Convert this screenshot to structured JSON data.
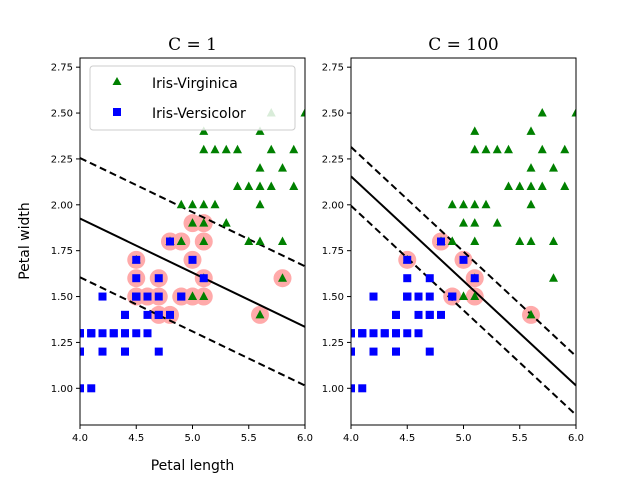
{
  "chart_data": [
    {
      "type": "scatter",
      "title": "C = 1",
      "xlabel": "Petal length",
      "ylabel": "Petal width",
      "xlim": [
        4.0,
        6.0
      ],
      "ylim": [
        0.8,
        2.8
      ],
      "xticks": [
        "4.0",
        "4.5",
        "5.0",
        "5.5",
        "6.0"
      ],
      "yticks": [
        "1.00",
        "1.25",
        "1.50",
        "1.75",
        "2.00",
        "2.25",
        "2.50",
        "2.75"
      ],
      "legend": {
        "position": "top-left",
        "entries": [
          "Iris-Virginica",
          "Iris-Versicolor"
        ]
      },
      "series": [
        {
          "name": "Iris-Virginica",
          "marker": "triangle",
          "color": "#008000",
          "points": [
            [
              6.0,
              2.5
            ],
            [
              5.1,
              1.9
            ],
            [
              5.9,
              2.1
            ],
            [
              5.6,
              1.8
            ],
            [
              5.8,
              2.2
            ],
            [
              5.8,
              1.8
            ],
            [
              5.1,
              2.0
            ],
            [
              5.3,
              1.9
            ],
            [
              5.5,
              2.1
            ],
            [
              5.0,
              2.0
            ],
            [
              5.1,
              2.4
            ],
            [
              5.3,
              2.3
            ],
            [
              5.5,
              1.8
            ],
            [
              5.0,
              1.5
            ],
            [
              5.1,
              2.3
            ],
            [
              4.9,
              1.8
            ],
            [
              5.6,
              2.1
            ],
            [
              5.1,
              1.8
            ],
            [
              5.7,
              2.3
            ],
            [
              5.8,
              1.6
            ],
            [
              5.6,
              1.4
            ],
            [
              5.4,
              2.1
            ],
            [
              5.6,
              2.4
            ],
            [
              5.1,
              1.5
            ],
            [
              5.6,
              2.2
            ],
            [
              5.9,
              2.3
            ],
            [
              5.7,
              2.5
            ],
            [
              5.2,
              2.3
            ],
            [
              5.0,
              1.9
            ],
            [
              5.2,
              2.0
            ],
            [
              5.4,
              2.3
            ],
            [
              4.5,
              1.7
            ],
            [
              4.8,
              1.8
            ],
            [
              4.9,
              2.0
            ],
            [
              5.0,
              1.5
            ],
            [
              4.8,
              1.8
            ],
            [
              5.7,
              2.1
            ],
            [
              5.6,
              2.0
            ],
            [
              4.9,
              1.8
            ],
            [
              5.1,
              1.6
            ]
          ]
        },
        {
          "name": "Iris-Versicolor",
          "marker": "square",
          "color": "#0000ff",
          "points": [
            [
              4.7,
              1.4
            ],
            [
              4.5,
              1.5
            ],
            [
              4.9,
              1.5
            ],
            [
              4.0,
              1.3
            ],
            [
              4.6,
              1.5
            ],
            [
              4.5,
              1.3
            ],
            [
              4.7,
              1.6
            ],
            [
              4.4,
              1.3
            ],
            [
              4.1,
              1.0
            ],
            [
              4.0,
              1.0
            ],
            [
              4.7,
              1.4
            ],
            [
              4.4,
              1.4
            ],
            [
              4.2,
              1.5
            ],
            [
              4.4,
              1.2
            ],
            [
              4.5,
              1.5
            ],
            [
              4.1,
              1.3
            ],
            [
              4.5,
              1.5
            ],
            [
              4.0,
              1.2
            ],
            [
              4.8,
              1.8
            ],
            [
              4.0,
              1.3
            ],
            [
              4.9,
              1.5
            ],
            [
              4.7,
              1.2
            ],
            [
              4.3,
              1.3
            ],
            [
              4.4,
              1.4
            ],
            [
              4.8,
              1.4
            ],
            [
              5.0,
              1.7
            ],
            [
              4.5,
              1.5
            ],
            [
              4.1,
              1.3
            ],
            [
              4.5,
              1.6
            ],
            [
              4.7,
              1.5
            ],
            [
              4.4,
              1.3
            ],
            [
              4.1,
              1.3
            ],
            [
              4.0,
              1.3
            ],
            [
              4.4,
              1.2
            ],
            [
              4.6,
              1.4
            ],
            [
              4.0,
              1.2
            ],
            [
              4.2,
              1.3
            ],
            [
              4.2,
              1.2
            ],
            [
              4.3,
              1.3
            ],
            [
              4.6,
              1.3
            ],
            [
              5.1,
              1.6
            ],
            [
              4.5,
              1.7
            ]
          ]
        }
      ],
      "support_vectors": [
        [
          4.5,
          1.7
        ],
        [
          4.5,
          1.6
        ],
        [
          4.5,
          1.5
        ],
        [
          4.6,
          1.5
        ],
        [
          4.7,
          1.6
        ],
        [
          4.7,
          1.5
        ],
        [
          4.7,
          1.4
        ],
        [
          4.8,
          1.8
        ],
        [
          4.8,
          1.4
        ],
        [
          4.9,
          1.8
        ],
        [
          4.9,
          1.5
        ],
        [
          5.0,
          1.9
        ],
        [
          5.0,
          1.7
        ],
        [
          5.0,
          1.5
        ],
        [
          5.1,
          1.9
        ],
        [
          5.1,
          1.8
        ],
        [
          5.1,
          1.6
        ],
        [
          5.1,
          1.5
        ],
        [
          5.6,
          1.4
        ],
        [
          5.8,
          1.6
        ]
      ],
      "support_vector_color": "#ffaaaa",
      "decision_boundary": {
        "solid": [
          [
            4.0,
            1.925
          ],
          [
            6.0,
            1.335
          ]
        ],
        "margin_upper": [
          [
            4.0,
            2.255
          ],
          [
            6.0,
            1.665
          ]
        ],
        "margin_lower": [
          [
            4.0,
            1.605
          ],
          [
            6.0,
            1.015
          ]
        ]
      }
    },
    {
      "type": "scatter",
      "title": "C = 100",
      "xlabel": "",
      "ylabel": "",
      "xlim": [
        4.0,
        6.0
      ],
      "ylim": [
        0.8,
        2.8
      ],
      "xticks": [
        "4.0",
        "4.5",
        "5.0",
        "5.5",
        "6.0"
      ],
      "yticks": [
        "1.00",
        "1.25",
        "1.50",
        "1.75",
        "2.00",
        "2.25",
        "2.50",
        "2.75"
      ],
      "series": [
        {
          "name": "Iris-Virginica",
          "marker": "triangle",
          "color": "#008000",
          "points": [
            [
              6.0,
              2.5
            ],
            [
              5.1,
              1.9
            ],
            [
              5.9,
              2.1
            ],
            [
              5.6,
              1.8
            ],
            [
              5.8,
              2.2
            ],
            [
              5.8,
              1.8
            ],
            [
              5.1,
              2.0
            ],
            [
              5.3,
              1.9
            ],
            [
              5.5,
              2.1
            ],
            [
              5.0,
              2.0
            ],
            [
              5.1,
              2.4
            ],
            [
              5.3,
              2.3
            ],
            [
              5.5,
              1.8
            ],
            [
              5.0,
              1.5
            ],
            [
              5.1,
              2.3
            ],
            [
              4.9,
              1.8
            ],
            [
              5.6,
              2.1
            ],
            [
              5.1,
              1.8
            ],
            [
              5.7,
              2.3
            ],
            [
              5.8,
              1.6
            ],
            [
              5.6,
              1.4
            ],
            [
              5.4,
              2.1
            ],
            [
              5.6,
              2.4
            ],
            [
              5.1,
              1.5
            ],
            [
              5.6,
              2.2
            ],
            [
              5.9,
              2.3
            ],
            [
              5.7,
              2.5
            ],
            [
              5.2,
              2.3
            ],
            [
              5.0,
              1.9
            ],
            [
              5.2,
              2.0
            ],
            [
              5.4,
              2.3
            ],
            [
              4.5,
              1.7
            ],
            [
              4.8,
              1.8
            ],
            [
              4.9,
              2.0
            ],
            [
              5.0,
              1.5
            ],
            [
              4.8,
              1.8
            ],
            [
              5.7,
              2.1
            ],
            [
              5.6,
              2.0
            ],
            [
              4.9,
              1.8
            ],
            [
              5.1,
              1.6
            ]
          ]
        },
        {
          "name": "Iris-Versicolor",
          "marker": "square",
          "color": "#0000ff",
          "points": [
            [
              4.7,
              1.4
            ],
            [
              4.5,
              1.5
            ],
            [
              4.9,
              1.5
            ],
            [
              4.0,
              1.3
            ],
            [
              4.6,
              1.5
            ],
            [
              4.5,
              1.3
            ],
            [
              4.7,
              1.6
            ],
            [
              4.4,
              1.3
            ],
            [
              4.1,
              1.0
            ],
            [
              4.0,
              1.0
            ],
            [
              4.7,
              1.4
            ],
            [
              4.4,
              1.4
            ],
            [
              4.2,
              1.5
            ],
            [
              4.4,
              1.2
            ],
            [
              4.5,
              1.5
            ],
            [
              4.1,
              1.3
            ],
            [
              4.5,
              1.5
            ],
            [
              4.0,
              1.2
            ],
            [
              4.8,
              1.8
            ],
            [
              4.0,
              1.3
            ],
            [
              4.9,
              1.5
            ],
            [
              4.7,
              1.2
            ],
            [
              4.3,
              1.3
            ],
            [
              4.4,
              1.4
            ],
            [
              4.8,
              1.4
            ],
            [
              5.0,
              1.7
            ],
            [
              4.5,
              1.5
            ],
            [
              4.1,
              1.3
            ],
            [
              4.5,
              1.6
            ],
            [
              4.7,
              1.5
            ],
            [
              4.4,
              1.3
            ],
            [
              4.1,
              1.3
            ],
            [
              4.0,
              1.3
            ],
            [
              4.4,
              1.2
            ],
            [
              4.6,
              1.4
            ],
            [
              4.0,
              1.2
            ],
            [
              4.2,
              1.3
            ],
            [
              4.2,
              1.2
            ],
            [
              4.3,
              1.3
            ],
            [
              4.6,
              1.3
            ],
            [
              5.1,
              1.6
            ],
            [
              4.5,
              1.7
            ]
          ]
        }
      ],
      "support_vectors": [
        [
          4.5,
          1.7
        ],
        [
          4.8,
          1.8
        ],
        [
          4.9,
          1.5
        ],
        [
          5.0,
          1.7
        ],
        [
          5.1,
          1.6
        ],
        [
          5.1,
          1.5
        ],
        [
          5.6,
          1.4
        ]
      ],
      "support_vector_color": "#ffaaaa",
      "decision_boundary": {
        "solid": [
          [
            4.0,
            2.155
          ],
          [
            6.0,
            1.015
          ]
        ],
        "margin_upper": [
          [
            4.0,
            2.315
          ],
          [
            6.0,
            1.175
          ]
        ],
        "margin_lower": [
          [
            4.0,
            1.995
          ],
          [
            6.0,
            0.855
          ]
        ]
      }
    }
  ]
}
